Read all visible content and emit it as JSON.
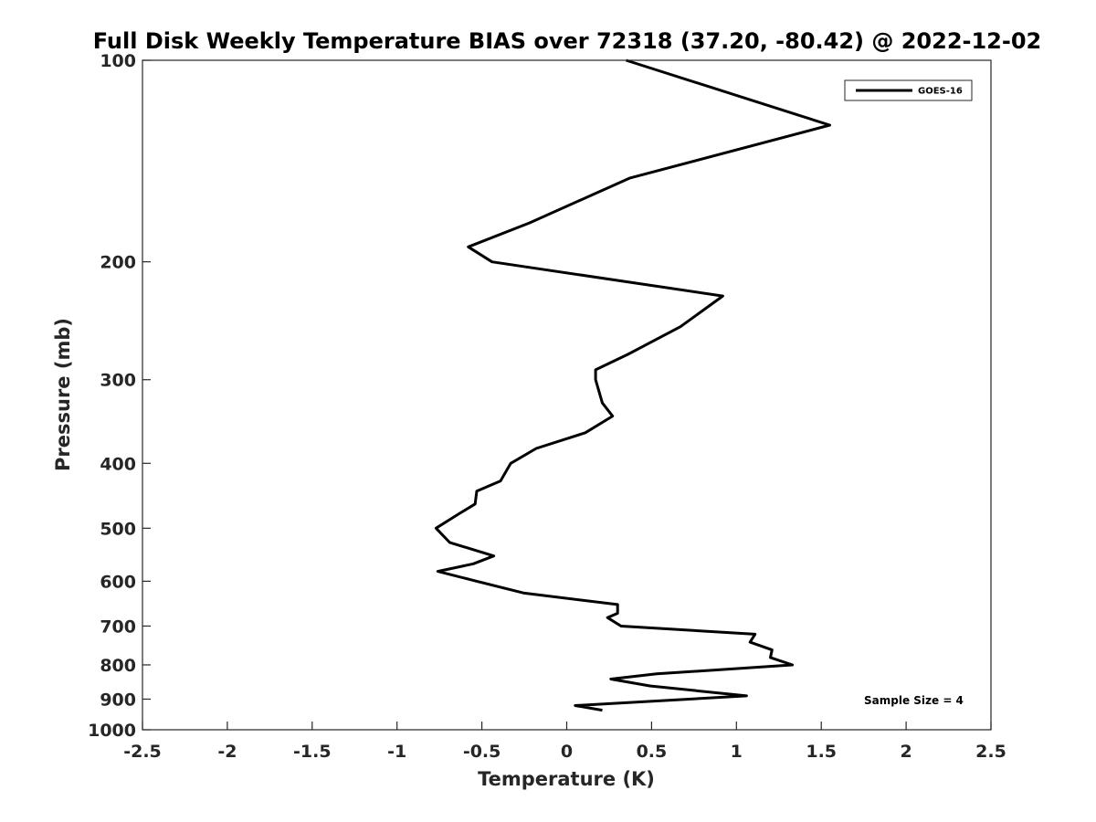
{
  "chart_data": {
    "type": "line",
    "title": "Full Disk Weekly Temperature BIAS over 72318 (37.20, -80.42) @ 2022-12-02",
    "xlabel": "Temperature (K)",
    "ylabel": "Pressure (mb)",
    "xlim": [
      -2.5,
      2.5
    ],
    "ylim": [
      100,
      1000
    ],
    "yscale": "log",
    "y_reversed": true,
    "grid": false,
    "xticks": [
      "-2.5",
      "-2",
      "-1.5",
      "-1",
      "-0.5",
      "0",
      "0.5",
      "1",
      "1.5",
      "2",
      "2.5"
    ],
    "yticks": [
      "100",
      "200",
      "300",
      "400",
      "500",
      "600",
      "700",
      "800",
      "900",
      "1000"
    ],
    "legend_position": "top-right",
    "series": [
      {
        "name": "GOES-16",
        "color": "#000000",
        "points": [
          [
            0.35,
            100
          ],
          [
            1.55,
            125
          ],
          [
            0.37,
            150
          ],
          [
            -0.22,
            175
          ],
          [
            -0.58,
            190
          ],
          [
            -0.44,
            200
          ],
          [
            0.92,
            225
          ],
          [
            0.67,
            250
          ],
          [
            0.36,
            275
          ],
          [
            0.17,
            290
          ],
          [
            0.17,
            300
          ],
          [
            0.21,
            325
          ],
          [
            0.27,
            340
          ],
          [
            0.11,
            360
          ],
          [
            -0.18,
            380
          ],
          [
            -0.33,
            400
          ],
          [
            -0.39,
            425
          ],
          [
            -0.53,
            440
          ],
          [
            -0.54,
            460
          ],
          [
            -0.63,
            475
          ],
          [
            -0.77,
            500
          ],
          [
            -0.69,
            525
          ],
          [
            -0.43,
            550
          ],
          [
            -0.55,
            565
          ],
          [
            -0.76,
            580
          ],
          [
            -0.53,
            600
          ],
          [
            -0.25,
            625
          ],
          [
            0.3,
            650
          ],
          [
            0.3,
            670
          ],
          [
            0.24,
            680
          ],
          [
            0.32,
            700
          ],
          [
            1.11,
            720
          ],
          [
            1.08,
            740
          ],
          [
            1.21,
            760
          ],
          [
            1.2,
            780
          ],
          [
            1.33,
            800
          ],
          [
            0.53,
            825
          ],
          [
            0.26,
            840
          ],
          [
            0.49,
            860
          ],
          [
            1.06,
            890
          ],
          [
            0.05,
            920
          ],
          [
            0.21,
            935
          ]
        ]
      }
    ],
    "annotations": [
      "Sample Size = 4"
    ]
  }
}
